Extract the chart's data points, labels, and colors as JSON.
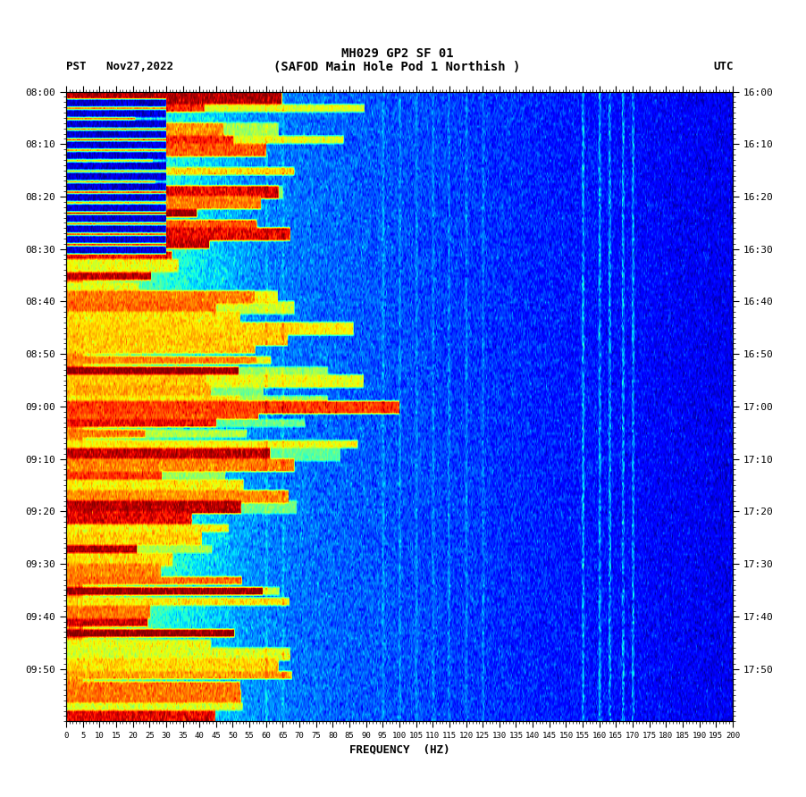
{
  "title_line1": "MH029 GP2 SF 01",
  "title_line2": "(SAFOD Main Hole Pod 1 Northish )",
  "left_label": "PST   Nov27,2022",
  "right_label": "UTC",
  "xlabel": "FREQUENCY  (HZ)",
  "left_yticks": [
    "08:00",
    "08:10",
    "08:20",
    "08:30",
    "08:40",
    "08:50",
    "09:00",
    "09:10",
    "09:20",
    "09:30",
    "09:40",
    "09:50"
  ],
  "right_yticks": [
    "16:00",
    "16:10",
    "16:20",
    "16:30",
    "16:40",
    "16:50",
    "17:00",
    "17:10",
    "17:20",
    "17:30",
    "17:40",
    "17:50"
  ],
  "freq_max": 200,
  "freq_min": 0,
  "n_time": 240,
  "n_freq": 800,
  "background_color": "#ffffff",
  "spectrogram_cmap": "jet",
  "usgs_green": "#1a6b3c",
  "title_fontsize": 10,
  "label_fontsize": 9,
  "tick_fontsize": 8,
  "font_family": "monospace"
}
